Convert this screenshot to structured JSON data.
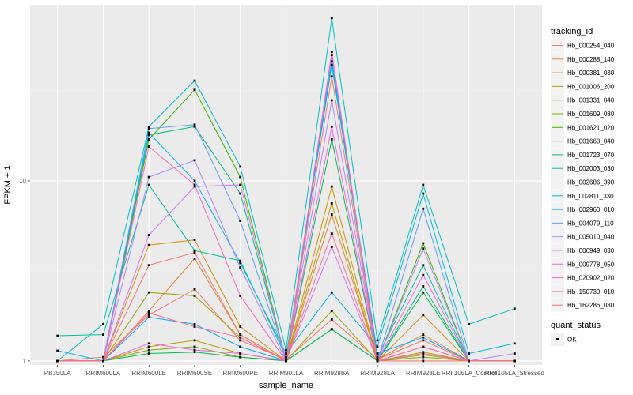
{
  "chart_data": {
    "type": "line",
    "xlabel": "sample_name",
    "ylabel": "FPKM + 1",
    "y_scale": "log10",
    "ylim": [
      0.95,
      95
    ],
    "y_ticks": [
      1,
      10
    ],
    "y_tick_labels": [
      "1",
      "10"
    ],
    "grid": true,
    "categories": [
      "PB350LA",
      "RRIM600LA",
      "RRIM600LE",
      "RRIM600SE",
      "RRIM600PE",
      "RRIM901LA",
      "RRIM928BA",
      "RRIM928LA",
      "RRIM928LE",
      "RRII105LA_Control",
      "RRII105LA_Stressed"
    ],
    "legend": {
      "title": "tracking_id",
      "placement": "right",
      "status_title": "quant_status",
      "status_items": [
        "OK"
      ]
    },
    "series": [
      {
        "name": "Hb_000254_040",
        "color": "#F8766D",
        "values": [
          1.0,
          1.05,
          1.8,
          2.5,
          1.3,
          1.02,
          1.7,
          1.02,
          1.3,
          1.0,
          1.0
        ]
      },
      {
        "name": "Hb_000288_140",
        "color": "#EA8331",
        "values": [
          1.0,
          1.0,
          1.9,
          3.7,
          1.4,
          1.0,
          6.5,
          1.02,
          1.4,
          1.0,
          1.0
        ]
      },
      {
        "name": "Hb_000381_030",
        "color": "#D89000",
        "values": [
          1.0,
          1.0,
          4.4,
          4.7,
          1.55,
          1.0,
          9.3,
          1.0,
          1.8,
          1.0,
          1.0
        ]
      },
      {
        "name": "Hb_001006_200",
        "color": "#C09B00",
        "values": [
          1.0,
          1.0,
          1.2,
          1.3,
          1.1,
          1.0,
          7.5,
          1.0,
          1.12,
          1.0,
          1.0
        ]
      },
      {
        "name": "Hb_001331_040",
        "color": "#A3A500",
        "values": [
          1.0,
          1.0,
          2.4,
          2.3,
          1.35,
          1.0,
          1.9,
          1.0,
          1.08,
          1.0,
          1.0
        ]
      },
      {
        "name": "Hb_001609_080",
        "color": "#7CAE00",
        "values": [
          1.0,
          1.0,
          1.15,
          1.2,
          1.05,
          1.0,
          1.5,
          1.0,
          1.05,
          1.0,
          1.0
        ]
      },
      {
        "name": "Hb_001621_020",
        "color": "#39B600",
        "values": [
          1.0,
          1.0,
          17.0,
          32.0,
          10.5,
          1.0,
          1.5,
          1.0,
          4.5,
          1.0,
          1.0
        ]
      },
      {
        "name": "Hb_001660_040",
        "color": "#00BB4E",
        "values": [
          1.0,
          1.0,
          1.1,
          1.12,
          1.05,
          1.0,
          17.0,
          1.0,
          2.4,
          1.0,
          1.0
        ]
      },
      {
        "name": "Hb_001723_070",
        "color": "#00BF7D",
        "values": [
          1.0,
          1.0,
          18.0,
          20.0,
          8.5,
          1.0,
          1.5,
          1.0,
          2.6,
          1.0,
          1.0
        ]
      },
      {
        "name": "Hb_002003_030",
        "color": "#00C1A3",
        "values": [
          1.38,
          1.4,
          9.5,
          4.1,
          3.6,
          1.05,
          44.0,
          1.05,
          3.4,
          1.0,
          1.0
        ]
      },
      {
        "name": "Hb_002686_390",
        "color": "#00BFC4",
        "values": [
          1.0,
          1.6,
          20.0,
          36.0,
          12.0,
          1.15,
          80.0,
          1.3,
          9.5,
          1.6,
          1.95
        ]
      },
      {
        "name": "Hb_002811_330",
        "color": "#00B8E7",
        "values": [
          1.14,
          1.0,
          18.5,
          10.0,
          3.5,
          1.1,
          2.4,
          1.2,
          8.5,
          1.1,
          1.25
        ]
      },
      {
        "name": "Hb_002960_010",
        "color": "#00A9FF",
        "values": [
          1.0,
          1.0,
          1.75,
          1.6,
          1.2,
          1.0,
          46.0,
          1.1,
          1.35,
          1.0,
          1.0
        ]
      },
      {
        "name": "Hb_004079_110",
        "color": "#619CFF",
        "values": [
          1.0,
          1.0,
          19.5,
          20.5,
          6.0,
          1.0,
          50.0,
          1.0,
          7.0,
          1.0,
          1.0
        ]
      },
      {
        "name": "Hb_005010_040",
        "color": "#AE87FF",
        "values": [
          1.0,
          1.0,
          10.5,
          13.0,
          3.3,
          1.0,
          28.0,
          1.0,
          4.2,
          1.0,
          1.1
        ]
      },
      {
        "name": "Hb_006949_030",
        "color": "#DB72FB",
        "values": [
          1.0,
          1.0,
          5.0,
          9.3,
          9.5,
          1.0,
          4.3,
          1.0,
          1.2,
          1.0,
          1.0
        ]
      },
      {
        "name": "Hb_009778_050",
        "color": "#F564E3",
        "values": [
          1.0,
          1.0,
          1.25,
          1.15,
          1.1,
          1.0,
          20.0,
          1.0,
          3.0,
          1.0,
          1.0
        ]
      },
      {
        "name": "Hb_020902_020",
        "color": "#FF61C3",
        "values": [
          1.0,
          1.0,
          15.5,
          9.5,
          2.3,
          1.0,
          52.0,
          1.0,
          1.1,
          1.0,
          1.0
        ]
      },
      {
        "name": "Hb_150730_010",
        "color": "#FF6C91",
        "values": [
          1.0,
          1.0,
          1.85,
          1.55,
          1.35,
          1.0,
          5.1,
          1.0,
          1.2,
          1.0,
          1.0
        ]
      },
      {
        "name": "Hb_162286_030",
        "color": "#F8766D",
        "values": [
          1.0,
          1.0,
          3.4,
          4.0,
          1.4,
          1.0,
          38.0,
          1.0,
          1.0,
          1.0,
          1.0
        ]
      }
    ]
  }
}
